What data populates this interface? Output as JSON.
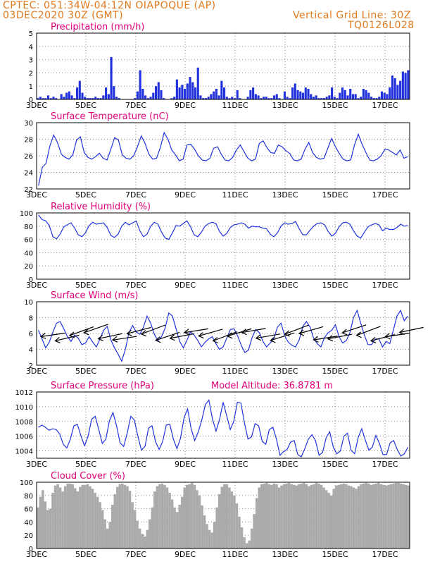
{
  "header": {
    "source_location": "CPTEC:   051:34W-04:12N   OIAPOQUE (AP)",
    "date": "03DEC2020 30Z (GMT)",
    "vertical_grid": "Vertical Grid Line: 30Z",
    "model_code": "TQ0126L028"
  },
  "colors": {
    "header": "#e07a1f",
    "title": "#e0007a",
    "line": "#2233dd",
    "bars": "#2233dd",
    "cloud": "#aaaaaa",
    "wind_arrow": "#000000"
  },
  "chart_data": [
    {
      "type": "bar",
      "title": "Precipitation (mm/h)",
      "ylim": [
        0,
        5
      ],
      "yticks": [
        0,
        1,
        2,
        3,
        4,
        5
      ],
      "xticks": [
        "3DEC",
        "5DEC",
        "7DEC",
        "9DEC",
        "11DEC",
        "13DEC",
        "15DEC",
        "17DEC"
      ],
      "series": [
        {
          "values": [
            0.1,
            0.2,
            0.1,
            0.1,
            0.3,
            0.1,
            0.2,
            0.1,
            0,
            0.4,
            0.2,
            0.5,
            0.6,
            0.3,
            0.1,
            0.9,
            1.4,
            0.5,
            0.2,
            0.1,
            0.1,
            0.1,
            0.2,
            0.1,
            0.1,
            0.3,
            0.9,
            0.4,
            3.2,
            1.0,
            0.2,
            0.1,
            0,
            0,
            0,
            0,
            0,
            0.1,
            0.6,
            2.2,
            0.8,
            0.3,
            0.1,
            0.2,
            0.5,
            1.0,
            1.3,
            0.7,
            0.1,
            0,
            0,
            0.1,
            0.2,
            1.5,
            0.9,
            1.1,
            0.8,
            1.2,
            1.7,
            1.3,
            0.9,
            2.4,
            0.3,
            0.1,
            0.1,
            0.2,
            0.4,
            0.6,
            0.8,
            0.3,
            1.4,
            0.9,
            0.2,
            0.1,
            0.2,
            0.1,
            0.7,
            0.1,
            0,
            0,
            0.2,
            0.7,
            0.9,
            0.4,
            0.3,
            0.1,
            0.2,
            0.2,
            0.1,
            0.1,
            0.3,
            0.4,
            0.1,
            0,
            0.6,
            0.2,
            0.1,
            0.9,
            1.2,
            0.7,
            0.6,
            0.5,
            0.9,
            0.8,
            0.4,
            0.2,
            0.3,
            0.1,
            0.1,
            0.1,
            0.2,
            0.3,
            0.9,
            0.2,
            0.1,
            0.5,
            0.9,
            0.7,
            0.3,
            0.8,
            0.4,
            0.4,
            0.1,
            0.2,
            0.8,
            0.7,
            0.5,
            0.2,
            0.1,
            0.1,
            0.2,
            0.6,
            0.5,
            0.4,
            0.9,
            1.8,
            1.6,
            1.1,
            1.4,
            2.1,
            2.0,
            2.2
          ]
        }
      ]
    },
    {
      "type": "line",
      "title": "Surface Temperature (nC)",
      "ylim": [
        22,
        30
      ],
      "yticks": [
        22,
        24,
        26,
        28,
        30
      ],
      "xticks": [
        "3DEC",
        "5DEC",
        "7DEC",
        "9DEC",
        "11DEC",
        "13DEC",
        "15DEC",
        "17DEC"
      ],
      "series": [
        {
          "values": [
            22.4,
            24.6,
            25.1,
            27.2,
            28.5,
            27.6,
            26.2,
            25.8,
            25.6,
            26.1,
            27.9,
            28.3,
            26.4,
            25.8,
            25.6,
            25.9,
            26.3,
            25.7,
            25.5,
            26.8,
            28.2,
            27.9,
            26.1,
            25.7,
            25.6,
            26.0,
            27.1,
            28.4,
            27.5,
            26.2,
            25.6,
            25.7,
            27.0,
            28.8,
            28.0,
            26.7,
            26.1,
            25.4,
            25.6,
            27.3,
            27.4,
            26.8,
            26.0,
            25.5,
            25.4,
            25.7,
            26.9,
            27.1,
            26.2,
            25.5,
            25.4,
            25.8,
            26.7,
            27.3,
            26.5,
            25.7,
            25.4,
            25.6,
            27.5,
            27.8,
            27.0,
            26.4,
            26.3,
            27.3,
            27.1,
            26.6,
            26.3,
            25.5,
            25.4,
            25.6,
            26.8,
            27.6,
            26.4,
            25.8,
            25.6,
            25.7,
            26.9,
            28.1,
            27.1,
            26.3,
            25.6,
            25.4,
            25.5,
            27.3,
            28.6,
            27.4,
            26.4,
            25.5,
            25.4,
            25.6,
            26.0,
            26.8,
            26.7,
            26.4,
            26.1,
            26.7,
            25.7,
            25.9
          ]
        }
      ]
    },
    {
      "type": "line",
      "title": "Relative Humidity (%)",
      "ylim": [
        0,
        100
      ],
      "yticks": [
        0,
        20,
        40,
        60,
        80,
        100
      ],
      "xticks": [
        "3DEC",
        "5DEC",
        "7DEC",
        "9DEC",
        "11DEC",
        "13DEC",
        "15DEC",
        "17DEC"
      ],
      "series": [
        {
          "values": [
            97,
            90,
            88,
            81,
            64,
            61,
            68,
            79,
            82,
            85,
            77,
            67,
            64,
            70,
            81,
            86,
            83,
            84,
            85,
            78,
            66,
            63,
            68,
            80,
            86,
            82,
            85,
            88,
            73,
            64,
            68,
            80,
            86,
            83,
            71,
            62,
            60,
            70,
            81,
            80,
            84,
            88,
            79,
            67,
            64,
            71,
            80,
            84,
            86,
            84,
            72,
            65,
            69,
            78,
            82,
            83,
            85,
            83,
            77,
            80,
            79,
            79,
            77,
            76,
            68,
            64,
            70,
            80,
            85,
            83,
            84,
            87,
            76,
            67,
            67,
            74,
            80,
            84,
            85,
            82,
            72,
            65,
            69,
            79,
            85,
            86,
            83,
            73,
            65,
            62,
            71,
            79,
            82,
            84,
            82,
            73,
            77,
            75,
            75,
            78,
            83,
            80,
            81
          ]
        }
      ]
    },
    {
      "type": "line",
      "title": "Surface Wind (m/s)",
      "ylim": [
        2,
        10
      ],
      "yticks": [
        2,
        4,
        6,
        8,
        10
      ],
      "xticks": [
        "3DEC",
        "5DEC",
        "7DEC",
        "9DEC",
        "11DEC",
        "13DEC",
        "15DEC",
        "17DEC"
      ],
      "series": [
        {
          "values": [
            6.4,
            5.3,
            4.2,
            4.9,
            6.2,
            7.3,
            7.5,
            6.6,
            5.6,
            5.0,
            5.8,
            5.4,
            4.6,
            4.8,
            5.6,
            4.9,
            4.3,
            5.3,
            6.4,
            6.9,
            5.2,
            4.2,
            3.4,
            2.5,
            4.0,
            6.1,
            7.0,
            6.2,
            5.9,
            6.8,
            8.2,
            7.3,
            5.9,
            5.1,
            5.6,
            6.7,
            8.6,
            8.2,
            6.6,
            5.0,
            4.2,
            5.1,
            6.2,
            5.8,
            5.1,
            4.3,
            4.9,
            5.3,
            5.6,
            4.7,
            4.0,
            4.3,
            5.4,
            6.5,
            6.6,
            5.7,
            4.5,
            3.6,
            3.9,
            5.5,
            6.5,
            6.1,
            5.0,
            4.3,
            4.8,
            5.4,
            6.8,
            7.3,
            5.7,
            4.9,
            4.5,
            4.3,
            5.2,
            6.9,
            7.5,
            6.8,
            5.4,
            4.7,
            4.3,
            5.5,
            6.1,
            6.4,
            7.1,
            5.6,
            4.8,
            5.1,
            6.1,
            8.0,
            8.9,
            7.3,
            5.8,
            4.6,
            4.6,
            5.3,
            5.3,
            4.3,
            5.0,
            4.7,
            6.4,
            8.2,
            8.9,
            7.6,
            8.2
          ]
        }
      ],
      "wind_arrows": 26
    },
    {
      "type": "line",
      "title": "Surface Pressure (hPa)",
      "annotation": "Model Altitude: 36.8781 m",
      "ylim": [
        1003,
        1012
      ],
      "yticks": [
        1004,
        1006,
        1008,
        1010,
        1012
      ],
      "xticks": [
        "3DEC",
        "5DEC",
        "7DEC",
        "9DEC",
        "11DEC",
        "13DEC",
        "15DEC",
        "17DEC"
      ],
      "series": [
        {
          "values": [
            1007.2,
            1007.5,
            1007.2,
            1006.8,
            1007.0,
            1006.9,
            1006.3,
            1004.9,
            1004.4,
            1005.6,
            1007.4,
            1007.6,
            1006.0,
            1004.7,
            1006.0,
            1008.3,
            1008.7,
            1006.9,
            1005.0,
            1005.6,
            1008.1,
            1009.2,
            1007.4,
            1005.1,
            1004.6,
            1006.4,
            1008.7,
            1008.2,
            1006.0,
            1004.1,
            1004.6,
            1007.1,
            1007.4,
            1005.2,
            1004.2,
            1005.3,
            1007.5,
            1007.6,
            1005.6,
            1004.3,
            1005.7,
            1008.5,
            1009.7,
            1007.0,
            1005.4,
            1006.6,
            1008.2,
            1010.3,
            1010.9,
            1008.3,
            1006.7,
            1008.3,
            1010.6,
            1008.8,
            1006.9,
            1008.0,
            1010.6,
            1010.5,
            1007.8,
            1005.6,
            1005.9,
            1007.7,
            1007.4,
            1005.3,
            1004.9,
            1006.9,
            1007.2,
            1005.6,
            1003.4,
            1003.9,
            1004.2,
            1005.2,
            1005.4,
            1003.5,
            1003.2,
            1004.3,
            1005.6,
            1006.2,
            1005.4,
            1003.4,
            1003.8,
            1005.8,
            1006.6,
            1004.5,
            1003.6,
            1004.0,
            1006.0,
            1006.4,
            1004.1,
            1003.6,
            1005.8,
            1007.0,
            1005.5,
            1004.1,
            1004.5,
            1006.1,
            1005.0,
            1003.5,
            1003.5,
            1005.1,
            1005.4,
            1004.2,
            1003.3,
            1003.6,
            1004.5
          ]
        }
      ]
    },
    {
      "type": "bar",
      "title": "Cloud Cover (%)",
      "ylim": [
        0,
        100
      ],
      "yticks": [
        0,
        20,
        40,
        60,
        80,
        100
      ],
      "xticks": [
        "3DEC",
        "5DEC",
        "7DEC",
        "9DEC",
        "11DEC",
        "13DEC",
        "15DEC",
        "17DEC"
      ],
      "series": [
        {
          "values": [
            62,
            78,
            88,
            71,
            58,
            60,
            84,
            95,
            97,
            92,
            86,
            94,
            98,
            98,
            97,
            91,
            86,
            93,
            96,
            96,
            97,
            94,
            90,
            84,
            78,
            70,
            58,
            44,
            30,
            40,
            66,
            82,
            93,
            97,
            98,
            96,
            94,
            87,
            70,
            58,
            42,
            30,
            22,
            18,
            28,
            44,
            62,
            86,
            94,
            97,
            98,
            96,
            92,
            84,
            74,
            62,
            55,
            66,
            78,
            92,
            96,
            97,
            99,
            96,
            88,
            80,
            65,
            50,
            37,
            28,
            24,
            40,
            62,
            82,
            93,
            97,
            97,
            92,
            86,
            80,
            68,
            48,
            32,
            17,
            8,
            12,
            30,
            52,
            76,
            92,
            97,
            98,
            99,
            97,
            96,
            98,
            97,
            92,
            95,
            97,
            98,
            99,
            97,
            96,
            95,
            97,
            98,
            99,
            97,
            94,
            96,
            97,
            99,
            98,
            96,
            92,
            88,
            84,
            80,
            90,
            95,
            96,
            97,
            98,
            97,
            95,
            94,
            92,
            90,
            94,
            97,
            98,
            99,
            98,
            96,
            97,
            98,
            99,
            97,
            96,
            95,
            96,
            97,
            98,
            99,
            99,
            98,
            97,
            96,
            95
          ]
        }
      ]
    }
  ]
}
